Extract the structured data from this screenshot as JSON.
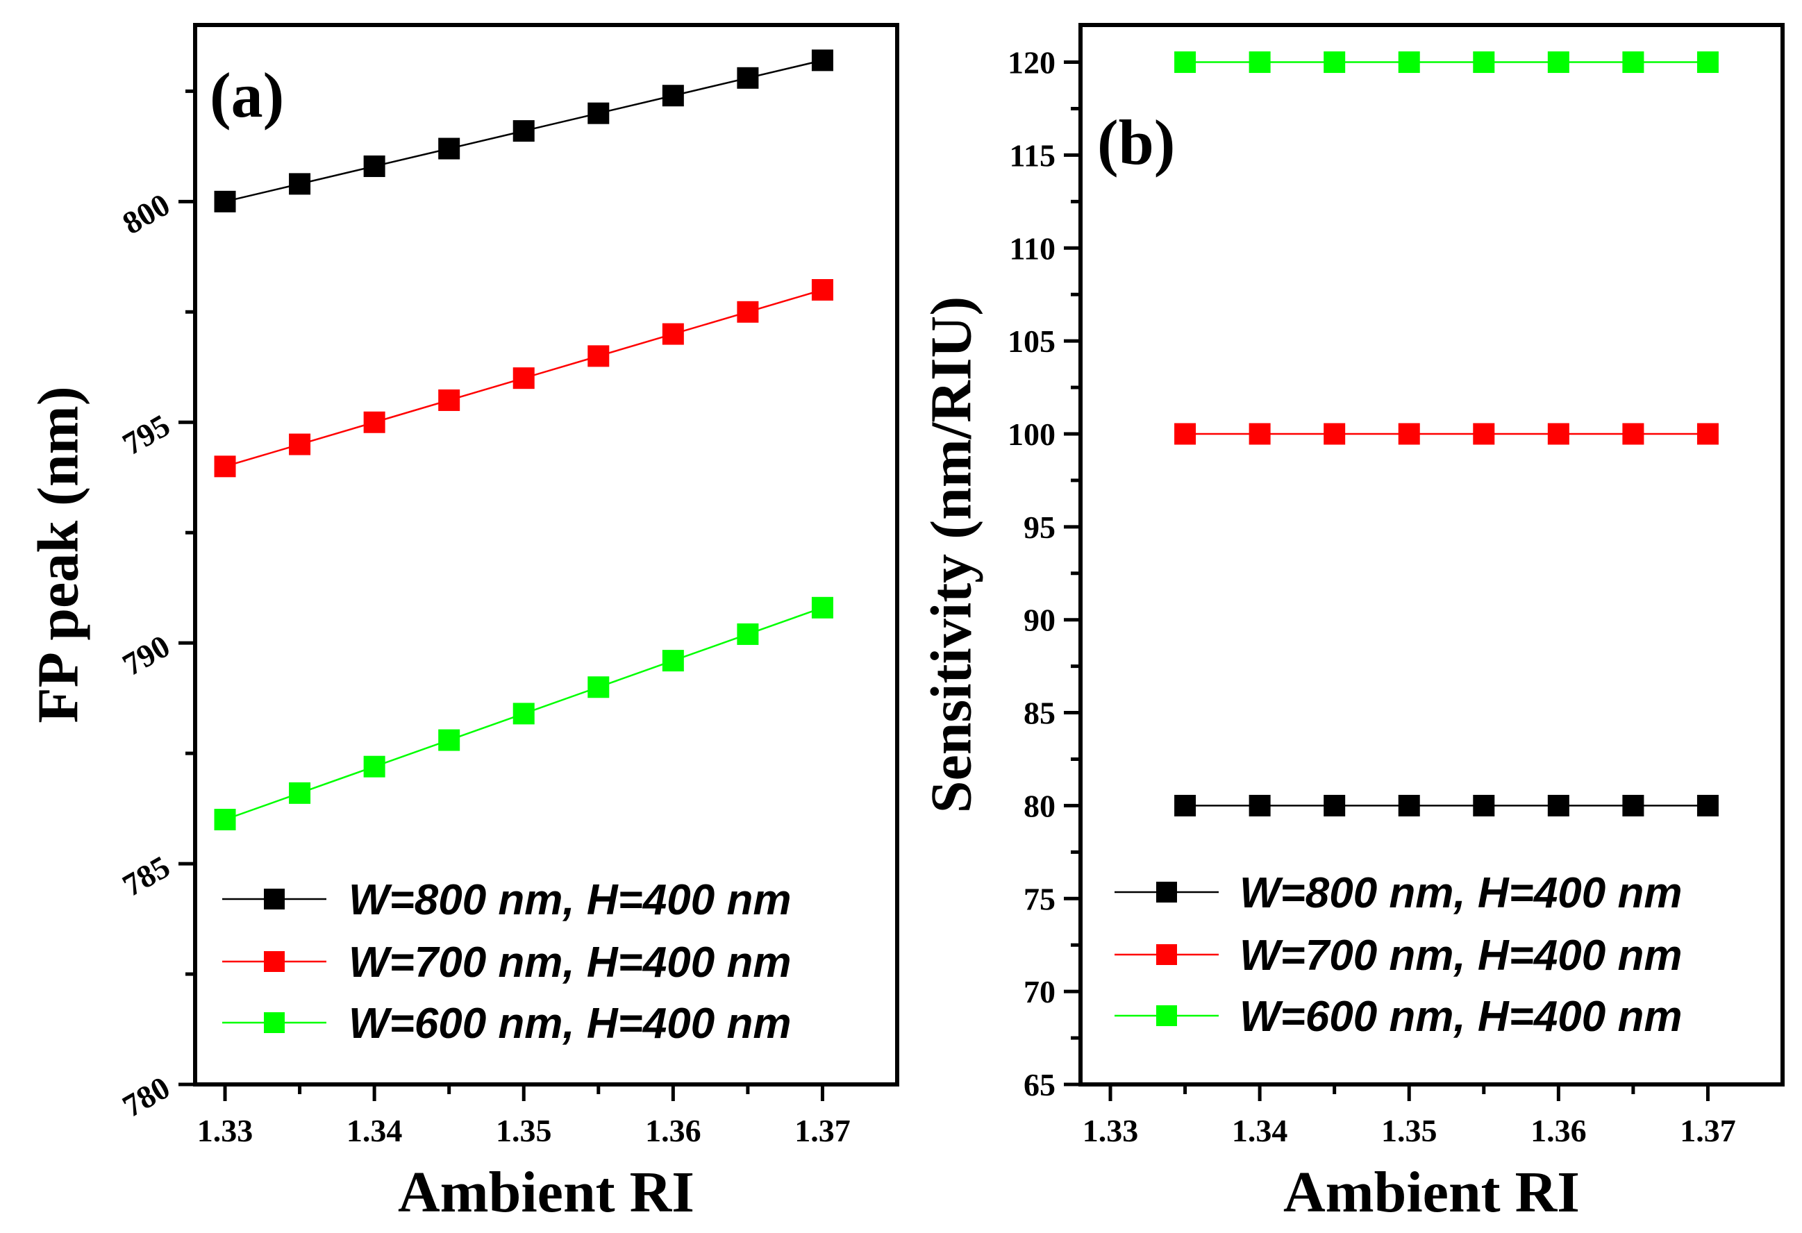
{
  "chart_data": [
    {
      "type": "line",
      "panel_label": "(a)",
      "xlabel": "Ambient RI",
      "ylabel": "FP peak (nm)",
      "xlim": [
        1.328,
        1.375
      ],
      "ylim": [
        780,
        804
      ],
      "x_ticks": [
        "1.33",
        "1.34",
        "1.35",
        "1.36",
        "1.37"
      ],
      "y_ticks": [
        "780",
        "785",
        "790",
        "795",
        "800"
      ],
      "legend_position": "bottom-right",
      "x": [
        1.33,
        1.335,
        1.34,
        1.345,
        1.35,
        1.355,
        1.36,
        1.365,
        1.37
      ],
      "series": [
        {
          "name": "W=800 nm, H=400 nm",
          "color": "#000000",
          "values": [
            800.0,
            800.4,
            800.8,
            801.2,
            801.6,
            802.0,
            802.4,
            802.8,
            803.2
          ]
        },
        {
          "name": "W=700 nm, H=400 nm",
          "color": "#ff0000",
          "values": [
            794.0,
            794.5,
            795.0,
            795.5,
            796.0,
            796.5,
            797.0,
            797.5,
            798.0
          ]
        },
        {
          "name": "W=600 nm, H=400 nm",
          "color": "#00ff00",
          "values": [
            786.0,
            786.6,
            787.2,
            787.8,
            788.4,
            789.0,
            789.6,
            790.2,
            790.8
          ]
        }
      ]
    },
    {
      "type": "line",
      "panel_label": "(b)",
      "xlabel": "Ambient RI",
      "ylabel": "Sensitivity (nm/RIU)",
      "xlim": [
        1.328,
        1.375
      ],
      "ylim": [
        65,
        122
      ],
      "x_ticks": [
        "1.33",
        "1.34",
        "1.35",
        "1.36",
        "1.37"
      ],
      "y_ticks": [
        "65",
        "70",
        "75",
        "80",
        "85",
        "90",
        "95",
        "100",
        "105",
        "110",
        "115",
        "120"
      ],
      "legend_position": "bottom-right",
      "x": [
        1.335,
        1.34,
        1.345,
        1.35,
        1.355,
        1.36,
        1.365,
        1.37
      ],
      "series": [
        {
          "name": "W=800 nm,  H=400 nm",
          "color": "#000000",
          "values": [
            80,
            80,
            80,
            80,
            80,
            80,
            80,
            80
          ]
        },
        {
          "name": "W=700 nm, H=400 nm",
          "color": "#ff0000",
          "values": [
            100,
            100,
            100,
            100,
            100,
            100,
            100,
            100
          ]
        },
        {
          "name": "W=600 nm, H=400 nm",
          "color": "#00ff00",
          "values": [
            120,
            120,
            120,
            120,
            120,
            120,
            120,
            120
          ]
        }
      ]
    }
  ]
}
